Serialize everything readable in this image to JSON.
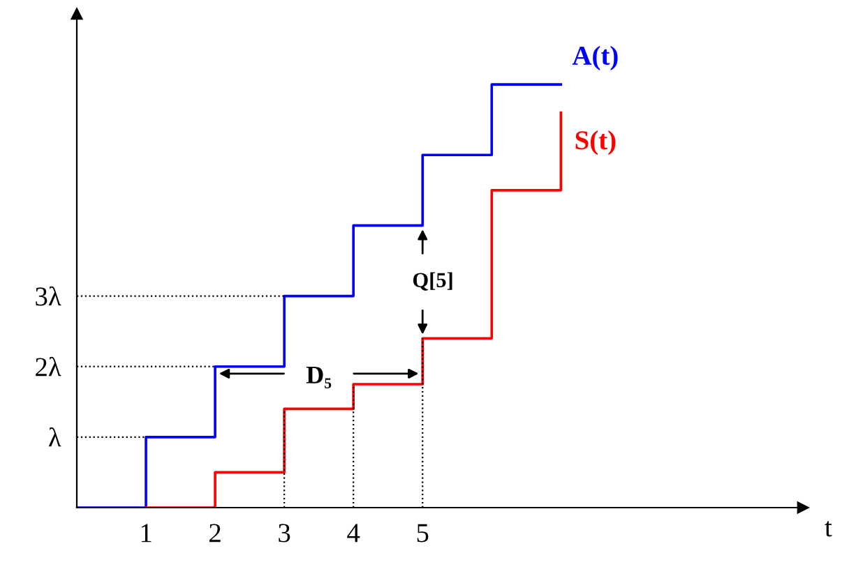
{
  "chart_data": {
    "type": "step",
    "xlabel": "t",
    "xlim": [
      0,
      10.5
    ],
    "ylim": [
      0,
      7
    ],
    "xticks": [
      1,
      2,
      3,
      4,
      5
    ],
    "yticks": [
      {
        "value": 1,
        "label": "λ"
      },
      {
        "value": 2,
        "label": "2λ"
      },
      {
        "value": 3,
        "label": "3λ"
      }
    ],
    "grid": false,
    "legend": false,
    "series": [
      {
        "name": "A(t)",
        "color": "#0000ff",
        "x": [
          0,
          1,
          2,
          3,
          4,
          5,
          6,
          7
        ],
        "values": [
          0,
          1,
          2,
          3,
          4,
          5,
          6,
          6
        ]
      },
      {
        "name": "S(t)",
        "color": "#ff0000",
        "x": [
          1,
          2,
          3,
          4,
          5,
          6,
          7
        ],
        "values": [
          0,
          0.5,
          1.4,
          1.75,
          2.4,
          4.5,
          5.6
        ]
      }
    ],
    "ref_lines": [
      {
        "axis": "y",
        "value": 1,
        "line_style": "dotted"
      },
      {
        "axis": "y",
        "value": 2,
        "line_style": "dotted"
      },
      {
        "axis": "y",
        "value": 3,
        "line_style": "dotted"
      },
      {
        "axis": "x",
        "value": 3,
        "line_style": "dotted"
      },
      {
        "axis": "x",
        "value": 4,
        "line_style": "dotted"
      },
      {
        "axis": "x",
        "value": 5,
        "line_style": "dotted"
      }
    ],
    "annotations": [
      {
        "text": "D₅",
        "x": 2,
        "y": 2
      },
      {
        "text": "Q[5]",
        "x": 5,
        "y": 4
      }
    ]
  }
}
